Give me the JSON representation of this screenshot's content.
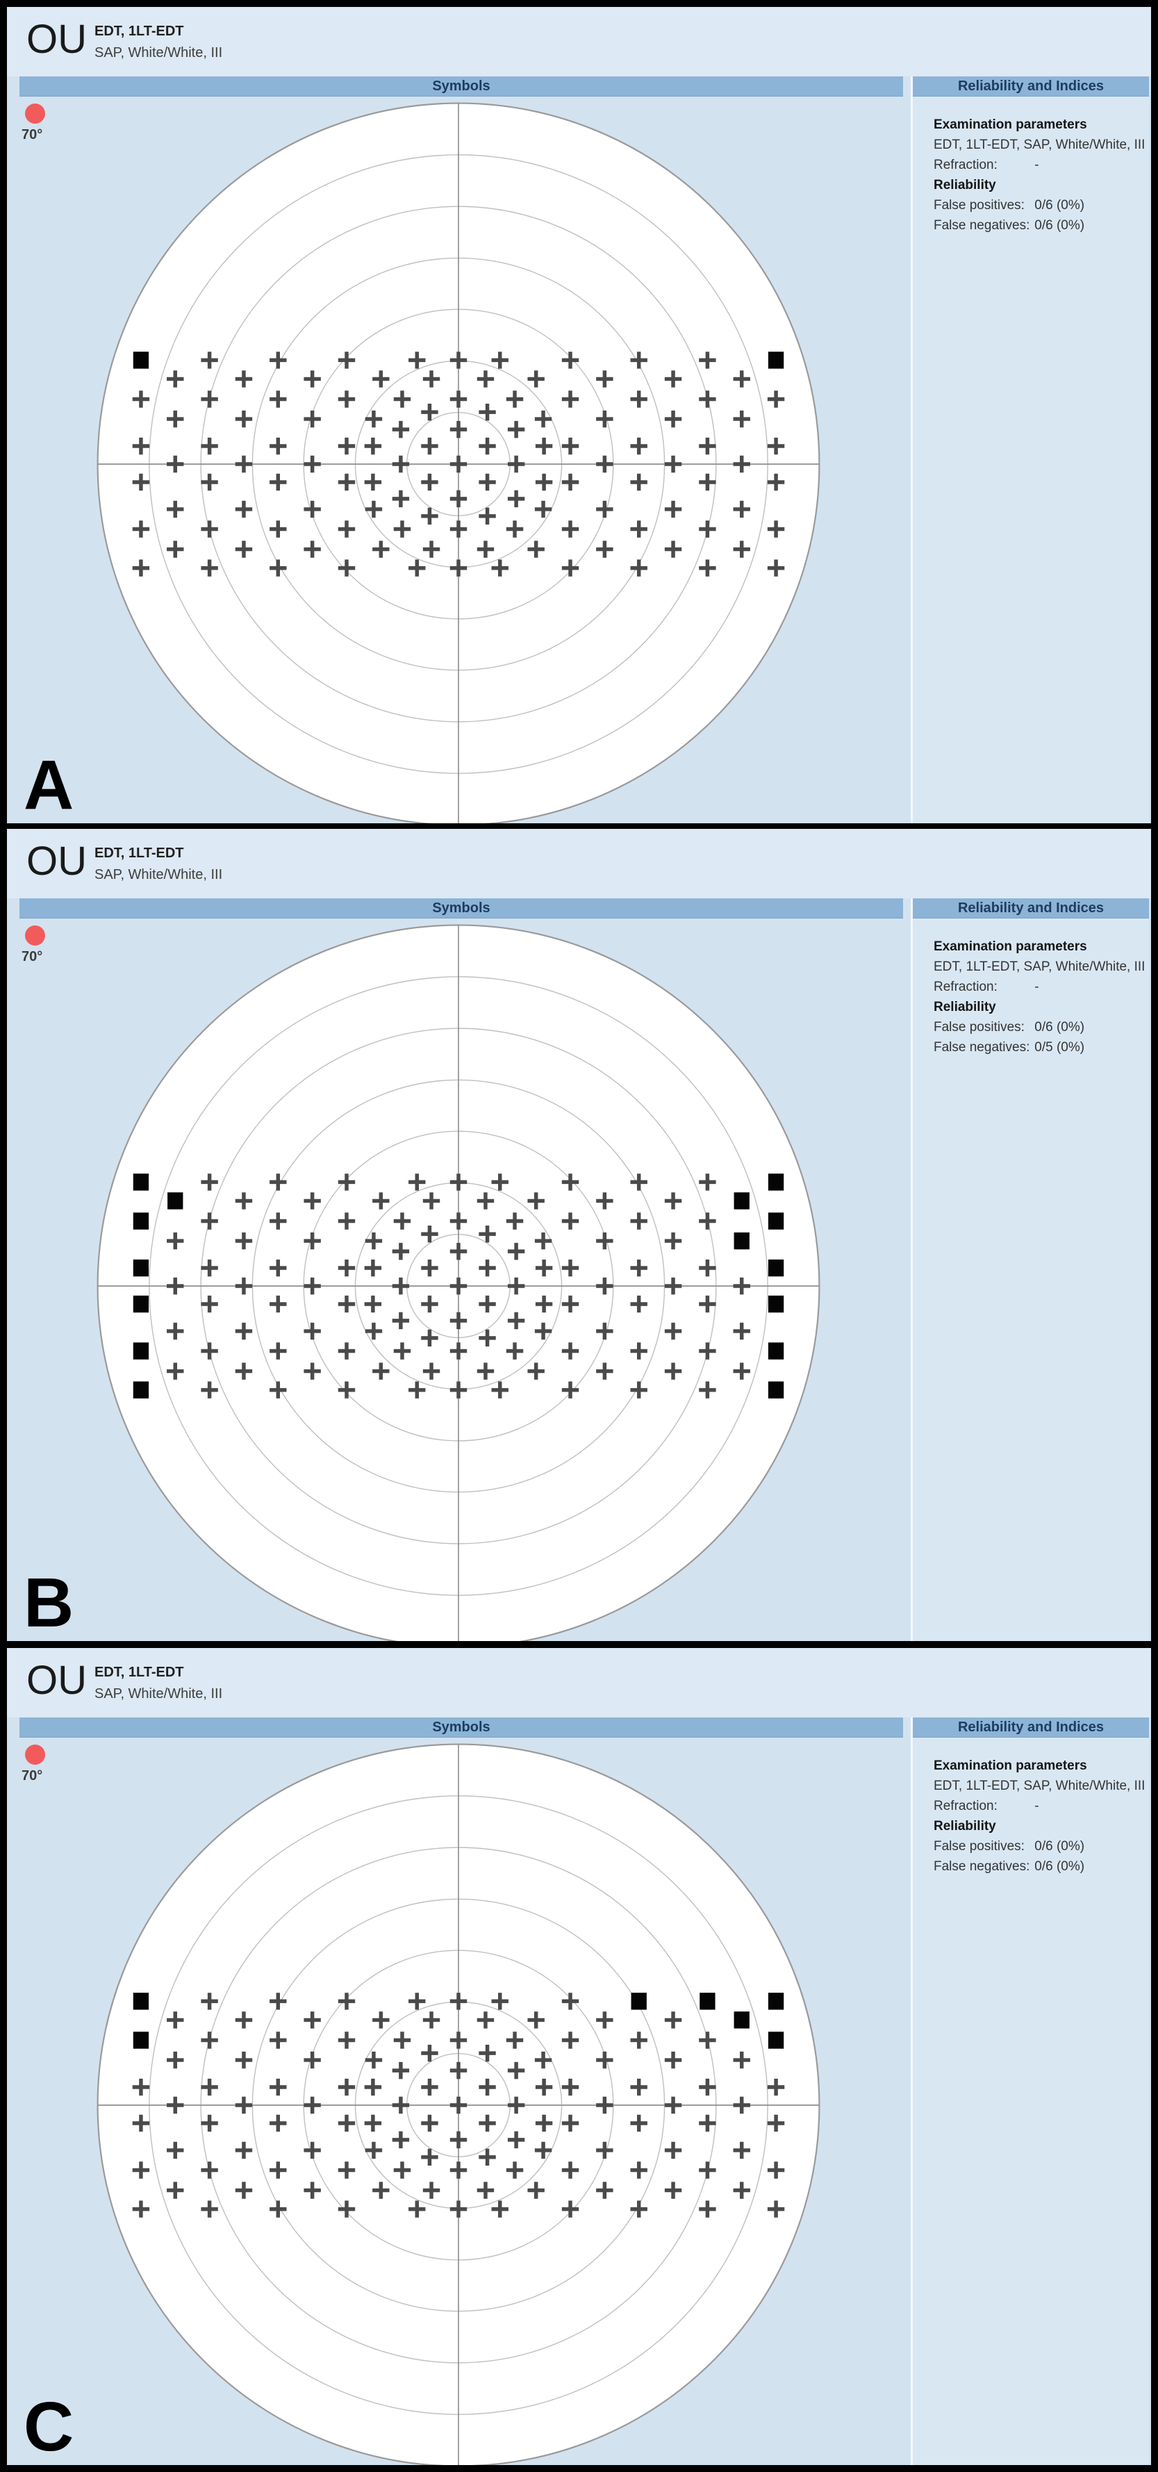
{
  "colors": {
    "panel_bg": "#d3e2ef",
    "header_strip_bg": "#dde9f4",
    "section_bar_bg": "#8cb4d6",
    "section_bar_text": "#1c3c60",
    "right_box_bg": "#d9e7f3",
    "field_fill": "#ffffff",
    "ring_stroke": "#bfbfbf",
    "outer_ring_stroke": "#9a9a9a",
    "meridian_stroke": "#8f8f8f",
    "seen_symbol": "#4a4a4a",
    "missed_symbol": "#050505",
    "red_dot": "#f15b5b"
  },
  "plot": {
    "rings": [
      0.143,
      0.286,
      0.429,
      0.571,
      0.714,
      0.857,
      1.0
    ],
    "grid_rows": [
      {
        "y": -0.288,
        "x": [
          -0.88,
          -0.69,
          -0.5,
          -0.31,
          -0.115,
          0,
          0.115,
          0.31,
          0.5,
          0.69,
          0.88
        ]
      },
      {
        "y": -0.236,
        "x": [
          -0.785,
          -0.595,
          -0.405,
          -0.215,
          -0.075,
          0.075,
          0.215,
          0.405,
          0.595,
          0.785
        ]
      },
      {
        "y": -0.18,
        "x": [
          -0.88,
          -0.69,
          -0.5,
          -0.31,
          -0.156,
          0,
          0.156,
          0.31,
          0.5,
          0.69,
          0.88
        ]
      },
      {
        "y": -0.144,
        "x": [
          -0.08,
          0.08
        ]
      },
      {
        "y": -0.125,
        "x": [
          -0.785,
          -0.595,
          -0.405,
          -0.235,
          0.235,
          0.405,
          0.595,
          0.785
        ]
      },
      {
        "y": -0.096,
        "x": [
          -0.16,
          0,
          0.16
        ]
      },
      {
        "y": -0.05,
        "x": [
          -0.88,
          -0.69,
          -0.5,
          -0.31,
          -0.237,
          -0.08,
          0.08,
          0.237,
          0.31,
          0.5,
          0.69,
          0.88
        ]
      },
      {
        "y": 0.0,
        "x": [
          -0.785,
          -0.595,
          -0.405,
          -0.16,
          0,
          0.16,
          0.405,
          0.595,
          0.785
        ]
      },
      {
        "y": 0.05,
        "x": [
          -0.88,
          -0.69,
          -0.5,
          -0.31,
          -0.237,
          -0.08,
          0.08,
          0.237,
          0.31,
          0.5,
          0.69,
          0.88
        ]
      },
      {
        "y": 0.096,
        "x": [
          -0.16,
          0,
          0.16
        ]
      },
      {
        "y": 0.125,
        "x": [
          -0.785,
          -0.595,
          -0.405,
          -0.235,
          0.235,
          0.405,
          0.595,
          0.785
        ]
      },
      {
        "y": 0.144,
        "x": [
          -0.08,
          0.08
        ]
      },
      {
        "y": 0.18,
        "x": [
          -0.88,
          -0.69,
          -0.5,
          -0.31,
          -0.156,
          0,
          0.156,
          0.31,
          0.5,
          0.69,
          0.88
        ]
      },
      {
        "y": 0.236,
        "x": [
          -0.785,
          -0.595,
          -0.405,
          -0.215,
          -0.075,
          0.075,
          0.215,
          0.405,
          0.595,
          0.785
        ]
      },
      {
        "y": 0.288,
        "x": [
          -0.88,
          -0.69,
          -0.5,
          -0.31,
          -0.115,
          0,
          0.115,
          0.31,
          0.5,
          0.69,
          0.88
        ]
      }
    ]
  },
  "panels": [
    {
      "letter": "A",
      "eye": "OU",
      "test_line1": "EDT, 1LT-EDT",
      "test_line2": "SAP, White/White, III",
      "symbols_title": "Symbols",
      "degree_label": "70°",
      "right": {
        "title": "Reliability and Indices",
        "exam_heading": "Examination parameters",
        "exam_value": "EDT, 1LT-EDT, SAP, White/White, III",
        "refraction_label": "Refraction:",
        "refraction_value": "-",
        "reliability_heading": "Reliability",
        "fp_label": "False positives:",
        "fp_value": "0/6 (0%)",
        "fn_label": "False negatives:",
        "fn_value": "0/6 (0%)"
      },
      "missed": [
        [
          -0.88,
          -0.288
        ],
        [
          0.88,
          -0.288
        ]
      ]
    },
    {
      "letter": "B",
      "eye": "OU",
      "test_line1": "EDT, 1LT-EDT",
      "test_line2": "SAP, White/White, III",
      "symbols_title": "Symbols",
      "degree_label": "70°",
      "right": {
        "title": "Reliability and Indices",
        "exam_heading": "Examination parameters",
        "exam_value": "EDT, 1LT-EDT, SAP, White/White, III",
        "refraction_label": "Refraction:",
        "refraction_value": "-",
        "reliability_heading": "Reliability",
        "fp_label": "False positives:",
        "fp_value": "0/6 (0%)",
        "fn_label": "False negatives:",
        "fn_value": "0/5 (0%)"
      },
      "missed": [
        [
          -0.88,
          -0.288
        ],
        [
          -0.785,
          -0.236
        ],
        [
          -0.88,
          -0.18
        ],
        [
          -0.88,
          -0.05
        ],
        [
          -0.88,
          0.05
        ],
        [
          -0.88,
          0.18
        ],
        [
          -0.88,
          0.288
        ],
        [
          0.88,
          -0.288
        ],
        [
          0.785,
          -0.236
        ],
        [
          0.88,
          -0.18
        ],
        [
          0.785,
          -0.125
        ],
        [
          0.88,
          -0.05
        ],
        [
          0.88,
          0.05
        ],
        [
          0.88,
          0.18
        ],
        [
          0.88,
          0.288
        ]
      ]
    },
    {
      "letter": "C",
      "eye": "OU",
      "test_line1": "EDT, 1LT-EDT",
      "test_line2": "SAP, White/White, III",
      "symbols_title": "Symbols",
      "degree_label": "70°",
      "right": {
        "title": "Reliability and Indices",
        "exam_heading": "Examination parameters",
        "exam_value": "EDT, 1LT-EDT, SAP, White/White, III",
        "refraction_label": "Refraction:",
        "refraction_value": "-",
        "reliability_heading": "Reliability",
        "fp_label": "False positives:",
        "fp_value": "0/6 (0%)",
        "fn_label": "False negatives:",
        "fn_value": "0/6 (0%)"
      },
      "missed": [
        [
          -0.88,
          -0.288
        ],
        [
          -0.88,
          -0.18
        ],
        [
          0.5,
          -0.288
        ],
        [
          0.69,
          -0.288
        ],
        [
          0.88,
          -0.288
        ],
        [
          0.785,
          -0.236
        ],
        [
          0.88,
          -0.18
        ]
      ]
    }
  ]
}
